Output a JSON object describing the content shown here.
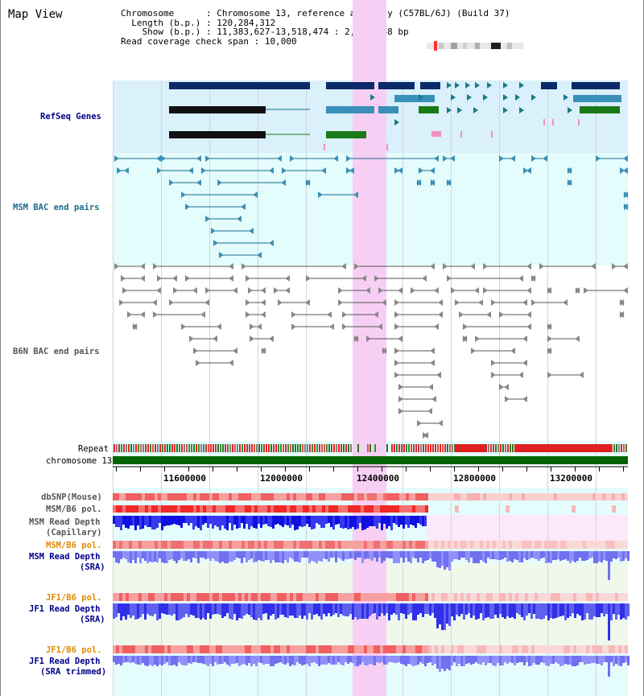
{
  "title": "Map View",
  "info": {
    "chromosome_key": "Chromosome",
    "chromosome_value": "Chromosome 13, reference assembly (C57BL/6J) (Build 37)",
    "length_key": "Length (b.p.)",
    "length_value": "120,284,312",
    "show_key": "Show (b.p.)",
    "show_value": "11,383,627-13,518,474 : 2,134,848 bp",
    "coverage_key": "Read coverage check span",
    "coverage_value": "10,000"
  },
  "tracks": {
    "refseq": "RefSeq Genes",
    "msm_bac": "MSM BAC end pairs",
    "b6n_bac": "B6N BAC end pairs",
    "repeat": "Repeat",
    "chromosome": "chromosome 13",
    "dbsnp": "dbSNP(Mouse)",
    "msm_b6_pol": "MSM/B6 pol.",
    "msm_depth_cap_1": "MSM Read Depth",
    "msm_depth_cap_2": "(Capillary)",
    "msm_b6_pol_2": "MSM/B6 pol.",
    "msm_depth_sra_1": "MSM Read Depth",
    "msm_depth_sra_2": "(SRA)",
    "jf1_b6_pol": "JF1/B6 pol.",
    "jf1_depth_sra_1": "JF1 Read Depth",
    "jf1_depth_sra_2": "(SRA)",
    "jf1_b6_pol_2": "JF1/B6 pol.",
    "jf1_depth_trim_1": "JF1 Read Depth",
    "jf1_depth_trim_2": "(SRA trimmed)"
  },
  "axis": {
    "ticks": [
      "11600000",
      "12000000",
      "12400000",
      "12800000",
      "13200000"
    ]
  },
  "colors": {
    "refseq_bg": "#daf0fa",
    "track_bg": "#e4fcfc",
    "highlight": "#f8d8f8",
    "refseq_label": "#00008b",
    "msm_label": "#1a6b8a",
    "b6n_label": "#555555",
    "jf1_label": "#e08a00",
    "depth_blue": "#3030e8",
    "snp_red": "#f07070",
    "chromosome_green": "#006400"
  }
}
